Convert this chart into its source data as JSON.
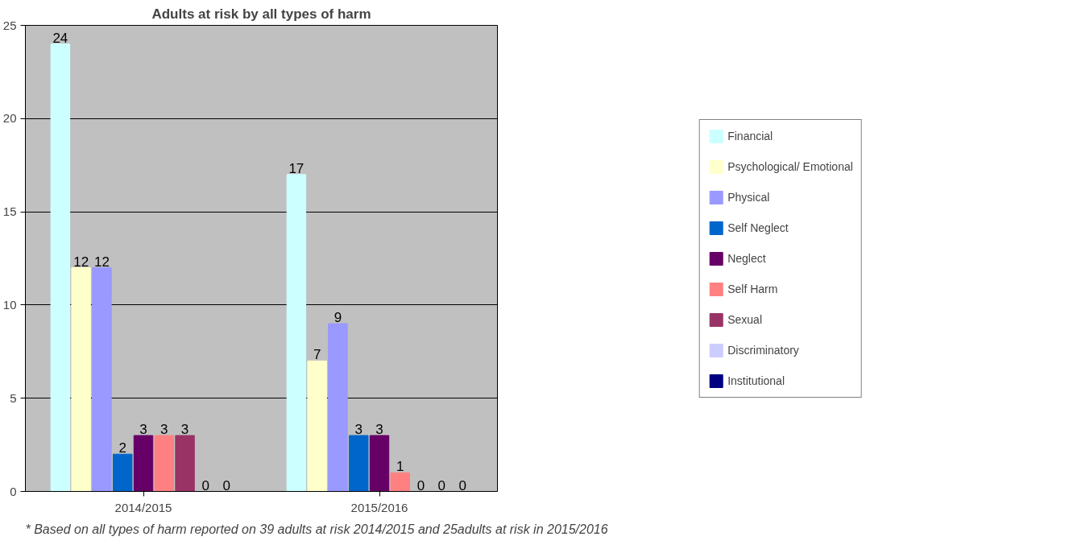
{
  "chart_data": {
    "type": "bar",
    "title": "Adults at risk by all types of harm",
    "categories": [
      "2014/2015",
      "2015/2016"
    ],
    "series": [
      {
        "name": "Financial",
        "color": "#ccffff",
        "values": [
          24,
          17
        ]
      },
      {
        "name": "Psychological/ Emotional",
        "color": "#ffffcc",
        "values": [
          12,
          7
        ]
      },
      {
        "name": "Physical",
        "color": "#9999ff",
        "values": [
          12,
          9
        ]
      },
      {
        "name": "Self Neglect",
        "color": "#0066cc",
        "values": [
          2,
          3
        ]
      },
      {
        "name": "Neglect",
        "color": "#660066",
        "values": [
          3,
          3
        ]
      },
      {
        "name": "Self Harm",
        "color": "#ff8080",
        "values": [
          3,
          1
        ]
      },
      {
        "name": "Sexual",
        "color": "#993366",
        "values": [
          3,
          0
        ]
      },
      {
        "name": "Discriminatory",
        "color": "#ccccff",
        "values": [
          0,
          0
        ]
      },
      {
        "name": "Institutional",
        "color": "#000080",
        "values": [
          0,
          0
        ]
      }
    ],
    "ylim": [
      0,
      25
    ],
    "yticks": [
      0,
      5,
      10,
      15,
      20,
      25
    ],
    "grid": "y",
    "legend": "right",
    "data_labels": true,
    "annotations": [
      "* Based on all types of harm reported on 39 adults at risk 2014/2015 and 25adults at risk in 2015/2016"
    ]
  }
}
